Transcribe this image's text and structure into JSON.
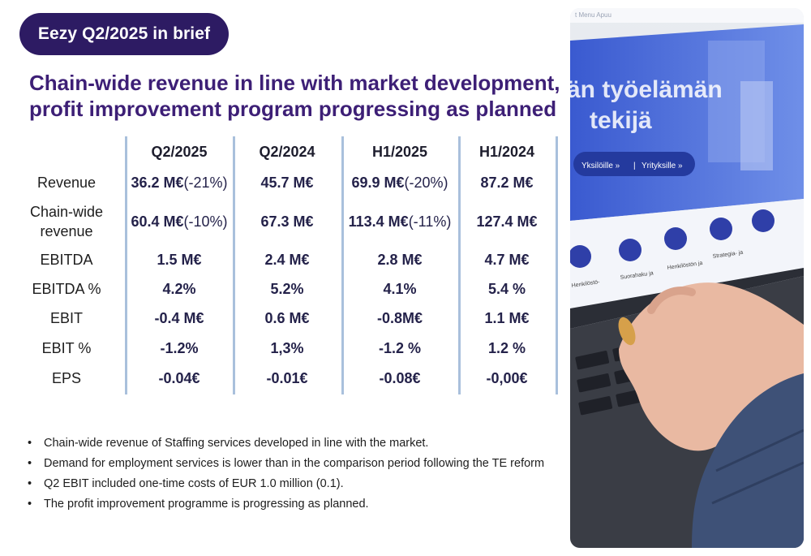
{
  "badge": {
    "label": "Eezy Q2/2025 in brief"
  },
  "headline": {
    "line1": "Chain-wide revenue in line with market development,",
    "line2": "profit improvement program progressing as planned"
  },
  "table": {
    "columns": [
      "Q2/2025",
      "Q2/2024",
      "H1/2025",
      "H1/2024"
    ],
    "rows": [
      {
        "label_lines": [
          "Revenue"
        ],
        "cells": [
          {
            "value": "36.2 M€",
            "change": " (-21%)"
          },
          {
            "value": "45.7 M€",
            "change": ""
          },
          {
            "value": "69.9 M€",
            "change": " (-20%)"
          },
          {
            "value": "87.2 M€",
            "change": ""
          }
        ]
      },
      {
        "label_lines": [
          "Chain-wide",
          "revenue"
        ],
        "cells": [
          {
            "value": "60.4 M€",
            "change": " (-10%)"
          },
          {
            "value": "67.3 M€",
            "change": ""
          },
          {
            "value": "113.4 M€",
            "change": " (-11%)"
          },
          {
            "value": "127.4 M€",
            "change": ""
          }
        ]
      },
      {
        "label_lines": [
          "EBITDA"
        ],
        "cells": [
          {
            "value": "1.5 M€",
            "change": ""
          },
          {
            "value": "2.4 M€",
            "change": ""
          },
          {
            "value": "2.8 M€",
            "change": ""
          },
          {
            "value": "4.7 M€",
            "change": ""
          }
        ]
      },
      {
        "label_lines": [
          "EBITDA %"
        ],
        "cells": [
          {
            "value": "4.2%",
            "change": ""
          },
          {
            "value": "5.2%",
            "change": ""
          },
          {
            "value": "4.1%",
            "change": ""
          },
          {
            "value": "5.4 %",
            "change": ""
          }
        ]
      },
      {
        "label_lines": [
          "EBIT"
        ],
        "cells": [
          {
            "value": "-0.4 M€",
            "change": ""
          },
          {
            "value": "0.6 M€",
            "change": ""
          },
          {
            "value": "-0.8M€",
            "change": ""
          },
          {
            "value": "1.1 M€",
            "change": ""
          }
        ]
      },
      {
        "label_lines": [
          "EBIT %"
        ],
        "cells": [
          {
            "value": "-1.2%",
            "change": ""
          },
          {
            "value": "1,3%",
            "change": ""
          },
          {
            "value": "-1.2 %",
            "change": ""
          },
          {
            "value": "1.2 %",
            "change": ""
          }
        ]
      },
      {
        "label_lines": [
          "EPS"
        ],
        "cells": [
          {
            "value": "-0.04€",
            "change": ""
          },
          {
            "value": "-0.01€",
            "change": ""
          },
          {
            "value": "-0.08€",
            "change": ""
          },
          {
            "value": "-0,00€",
            "change": ""
          }
        ]
      }
    ]
  },
  "bullets": {
    "marker": "•",
    "items": [
      "Chain-wide revenue of Staffing services developed in line with the market.",
      "Demand for employment services is lower than in the comparison period following the TE reform",
      "Q2 EBIT included one-time costs of EUR 1.0 million (0.1).",
      "The profit improvement programme is progressing as planned."
    ]
  },
  "photo": {
    "screen_heading_line1": "än työelämän",
    "screen_heading_line2": "tekijä",
    "pill_left": "Yksilöille »",
    "pill_right": "Yrityksille »",
    "tiles": [
      "Henkilöstö-",
      "Suorahaku ja",
      "Henkilöstön ja",
      "Strategia- ja"
    ]
  },
  "colors": {
    "brand_dark": "#2d1b63",
    "headline": "#3d1f76",
    "divider": "#a9c0dc",
    "screen_blue": "#2f3fa8"
  }
}
